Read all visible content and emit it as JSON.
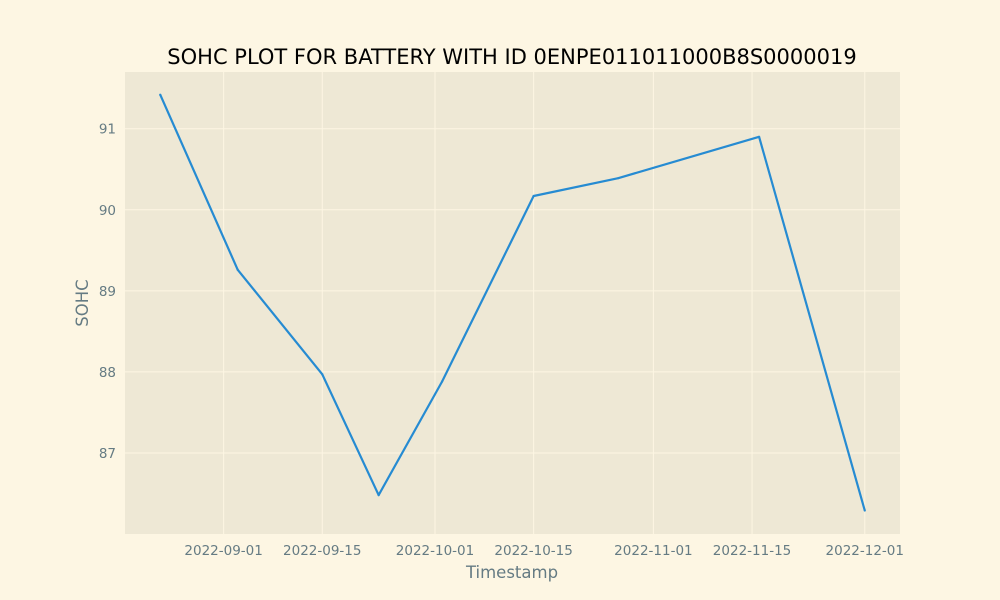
{
  "chart_data": {
    "type": "line",
    "title": "SOHC PLOT FOR BATTERY WITH ID 0ENPE011011000B8S0000019",
    "xlabel": "Timestamp",
    "ylabel": "SOHC",
    "x_tick_labels": [
      "2022-09-01",
      "2022-09-15",
      "2022-10-01",
      "2022-10-15",
      "2022-11-01",
      "2022-11-15",
      "2022-12-01"
    ],
    "y_tick_labels": [
      "87",
      "88",
      "89",
      "90",
      "91"
    ],
    "xlim": [
      "2022-08-18",
      "2022-12-06"
    ],
    "ylim": [
      86.0,
      91.7
    ],
    "grid": true,
    "series": [
      {
        "color": "#268bd2",
        "points": [
          {
            "x": "2022-08-23",
            "y": 91.42
          },
          {
            "x": "2022-09-03",
            "y": 89.26
          },
          {
            "x": "2022-09-15",
            "y": 87.97
          },
          {
            "x": "2022-09-23",
            "y": 86.48
          },
          {
            "x": "2022-10-02",
            "y": 87.88
          },
          {
            "x": "2022-10-15",
            "y": 90.17
          },
          {
            "x": "2022-10-27",
            "y": 90.39
          },
          {
            "x": "2022-11-16",
            "y": 90.9
          },
          {
            "x": "2022-12-01",
            "y": 86.29
          }
        ]
      }
    ]
  }
}
